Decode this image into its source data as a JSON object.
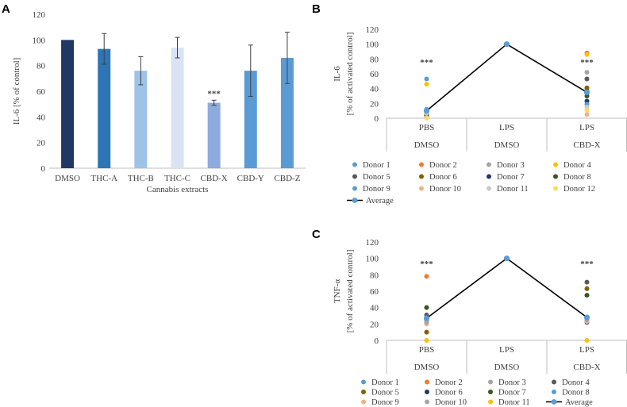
{
  "panel_labels": {
    "a": "A",
    "b": "B",
    "c": "C"
  },
  "chart_data": [
    {
      "type": "bar",
      "panel": "A",
      "title": "",
      "xlabel": "Cannabis  extracts",
      "ylabel": "IL-6 [% of control]",
      "ylim": [
        0,
        120
      ],
      "yticks": [
        "0",
        "20",
        "40",
        "60",
        "80",
        "100",
        "120"
      ],
      "categories": [
        "DMSO",
        "THC-A",
        "THC-B",
        "THC-C",
        "CBD-X",
        "CBD-Y",
        "CBD-Z"
      ],
      "values": [
        100,
        93,
        76,
        94,
        51,
        76,
        86
      ],
      "errors": [
        0,
        12,
        11,
        8,
        2,
        20,
        20
      ],
      "colors": [
        "#1f3864",
        "#2e75b6",
        "#9dc3e6",
        "#dae3f3",
        "#8faadc",
        "#5b9bd5",
        "#5b9bd5"
      ],
      "annotations": [
        {
          "category": "CBD-X",
          "text": "***"
        }
      ]
    },
    {
      "type": "line",
      "panel": "B",
      "ylabel": "IL-6",
      "ylabel2": "[% of activated  control]",
      "ylim": [
        0,
        120
      ],
      "yticks": [
        "0",
        "20",
        "40",
        "60",
        "80",
        "100",
        "120"
      ],
      "groups_top": [
        "PBS",
        "LPS",
        "LPS"
      ],
      "groups_bottom": [
        "DMSO",
        "DMSO",
        "CBD-X"
      ],
      "annotations": [
        {
          "group": 0,
          "text": "***"
        },
        {
          "group": 2,
          "text": "***"
        }
      ],
      "average": {
        "name": "Average",
        "values": [
          10,
          100,
          35
        ],
        "color": "#000000"
      },
      "series": [
        {
          "name": "Donor 1",
          "color": "#5b9bd5",
          "values": [
            12,
            100,
            38
          ]
        },
        {
          "name": "Donor 2",
          "color": "#ed7d31",
          "values": [
            2,
            100,
            88
          ]
        },
        {
          "name": "Donor 3",
          "color": "#a5a5a5",
          "values": [
            9,
            100,
            62
          ]
        },
        {
          "name": "Donor 4",
          "color": "#ffc000",
          "values": [
            46,
            100,
            86
          ]
        },
        {
          "name": "Donor 5",
          "color": "#595959",
          "values": [
            6,
            100,
            53
          ]
        },
        {
          "name": "Donor 6",
          "color": "#806000",
          "values": [
            4,
            100,
            41
          ]
        },
        {
          "name": "Donor 7",
          "color": "#1f3864",
          "values": [
            3,
            100,
            23
          ]
        },
        {
          "name": "Donor 8",
          "color": "#375623",
          "values": [
            5,
            100,
            30
          ]
        },
        {
          "name": "Donor 9",
          "color": "#5b9bd5",
          "values": [
            53,
            100,
            19
          ]
        },
        {
          "name": "Donor 10",
          "color": "#f4b183",
          "values": [
            1,
            100,
            5
          ]
        },
        {
          "name": "Donor 11",
          "color": "#c9c9c9",
          "values": [
            7,
            100,
            15
          ]
        },
        {
          "name": "Donor 12",
          "color": "#ffd966",
          "values": [
            0,
            100,
            11
          ]
        }
      ]
    },
    {
      "type": "line",
      "panel": "C",
      "ylabel": "TNF-α",
      "ylabel2": "[% of activated  control]",
      "ylim": [
        0,
        120
      ],
      "yticks": [
        "0",
        "20",
        "40",
        "60",
        "80",
        "100",
        "120"
      ],
      "groups_top": [
        "PBS",
        "LPS",
        "LPS"
      ],
      "groups_bottom": [
        "DMSO",
        "DMSO",
        "CBD-X"
      ],
      "annotations": [
        {
          "group": 0,
          "text": "***"
        },
        {
          "group": 2,
          "text": "***"
        }
      ],
      "average": {
        "name": "Average",
        "values": [
          27,
          100,
          28
        ],
        "color": "#000000"
      },
      "series": [
        {
          "name": "Donor 1",
          "color": "#5b9bd5",
          "values": [
            28,
            100,
            27
          ]
        },
        {
          "name": "Donor 2",
          "color": "#ed7d31",
          "values": [
            78,
            100,
            25
          ]
        },
        {
          "name": "Donor 3",
          "color": "#a5a5a5",
          "values": [
            22,
            100,
            26
          ]
        },
        {
          "name": "Donor 4",
          "color": "#595959",
          "values": [
            31,
            100,
            71
          ]
        },
        {
          "name": "Donor 5",
          "color": "#806000",
          "values": [
            10,
            100,
            63
          ]
        },
        {
          "name": "Donor 6",
          "color": "#1f3864",
          "values": [
            25,
            100,
            22
          ]
        },
        {
          "name": "Donor 7",
          "color": "#375623",
          "values": [
            40,
            100,
            55
          ]
        },
        {
          "name": "Donor 8",
          "color": "#5b9bd5",
          "values": [
            24,
            100,
            24
          ]
        },
        {
          "name": "Donor 9",
          "color": "#f4b183",
          "values": [
            20,
            100,
            23
          ]
        },
        {
          "name": "Donor 10",
          "color": "#a5a5a5",
          "values": [
            22,
            100,
            25
          ]
        },
        {
          "name": "Donor 11",
          "color": "#ffc000",
          "values": [
            0,
            100,
            0
          ]
        }
      ]
    }
  ]
}
